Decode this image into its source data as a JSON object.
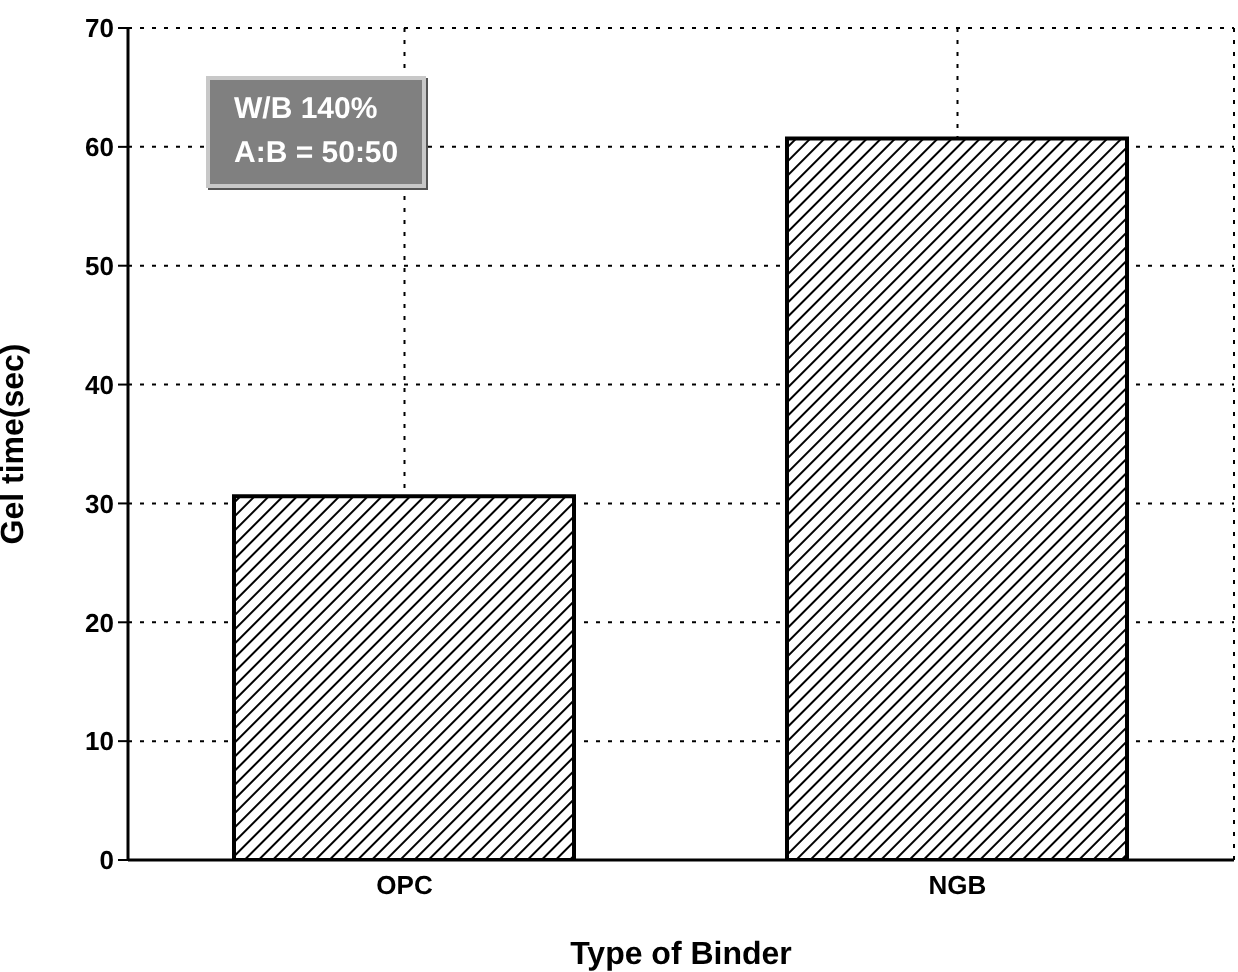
{
  "chart_data": {
    "type": "bar",
    "xlabel": "Type of Binder",
    "ylabel": "Gel time(sec)",
    "categories": [
      "OPC",
      "NGB"
    ],
    "values": [
      30.6,
      60.7
    ],
    "color": "#000000",
    "ylim": [
      0,
      70
    ],
    "yticks": [
      0,
      10,
      20,
      30,
      40,
      50,
      60,
      70
    ],
    "grid": true,
    "annotations": [
      "W/B 140%",
      "A:B = 50:50"
    ]
  }
}
